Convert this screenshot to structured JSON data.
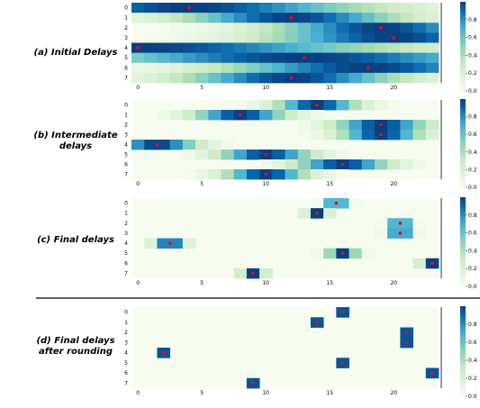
{
  "chart_data": [
    {
      "type": "heatmap",
      "label_lines": [
        "(a) Initial Delays"
      ],
      "y_ticks": [
        "0",
        "1",
        "2",
        "3",
        "4",
        "5",
        "6",
        "7"
      ],
      "x_ticks": [
        "0",
        "5",
        "10",
        "15",
        "20"
      ],
      "colorbar_ticks": [
        "0.0",
        "0.2",
        "0.4",
        "0.6",
        "0.8"
      ],
      "xlim": [
        0,
        24
      ],
      "vmin": 0,
      "vmax": 1,
      "cmap": "GnBu",
      "rows": [
        {
          "center": 4,
          "spread": 10,
          "marker": 4
        },
        {
          "center": 12,
          "spread": 6,
          "marker": 12
        },
        {
          "center": 19,
          "spread": 6,
          "marker": 19
        },
        {
          "center": 20,
          "spread": 7,
          "marker": 20
        },
        {
          "center": 0,
          "spread": 14,
          "marker": 0
        },
        {
          "center": 13,
          "spread": 12,
          "marker": 13
        },
        {
          "center": 18,
          "spread": 8,
          "marker": 18
        },
        {
          "center": 12,
          "spread": 6,
          "marker": 12
        }
      ]
    },
    {
      "type": "heatmap",
      "label_lines": [
        "(b) Intermediate",
        "delays"
      ],
      "y_ticks": [
        "0",
        "1",
        "2",
        "3",
        "4",
        "5",
        "6",
        "7"
      ],
      "x_ticks": [
        "0",
        "5",
        "10",
        "15",
        "20"
      ],
      "colorbar_ticks": [
        "0.0",
        "0.2",
        "0.4",
        "0.6",
        "0.8"
      ],
      "xlim": [
        0,
        24
      ],
      "vmin": 0,
      "vmax": 1,
      "cmap": "GnBu",
      "rows": [
        {
          "center": 14,
          "spread": 2.2,
          "marker": 14
        },
        {
          "center": 8,
          "spread": 2.5,
          "marker": 8
        },
        {
          "center": 19,
          "spread": 2.5,
          "marker": 19
        },
        {
          "center": 19,
          "spread": 2.2,
          "marker": 19
        },
        {
          "center": 1.5,
          "spread": 2.2,
          "marker": 1.5
        },
        {
          "center": 10,
          "spread": 2.5,
          "marker": 10
        },
        {
          "center": 16,
          "spread": 2.5,
          "marker": 16
        },
        {
          "center": 10,
          "spread": 2.2,
          "marker": 10
        }
      ]
    },
    {
      "type": "heatmap",
      "label_lines": [
        "(c) Final delays"
      ],
      "y_ticks": [
        "0",
        "1",
        "2",
        "3",
        "4",
        "5",
        "6",
        "7"
      ],
      "x_ticks": [
        "0",
        "5",
        "10",
        "15",
        "20"
      ],
      "colorbar_ticks": [
        "0.0",
        "0.2",
        "0.4",
        "0.6",
        "0.8"
      ],
      "xlim": [
        0,
        24
      ],
      "vmin": 0,
      "vmax": 1,
      "cmap": "GnBu",
      "rows": [
        {
          "center": 15.5,
          "spread": 0.55,
          "marker": 15.5
        },
        {
          "center": 14,
          "spread": 0.55,
          "marker": 14
        },
        {
          "center": 20.5,
          "spread": 0.55,
          "marker": 20.5
        },
        {
          "center": 20.5,
          "spread": 0.6,
          "marker": 20.5
        },
        {
          "center": 2.5,
          "spread": 0.8,
          "marker": 2.5
        },
        {
          "center": 16,
          "spread": 0.8,
          "marker": 16
        },
        {
          "center": 23,
          "spread": 0.6,
          "marker": 23
        },
        {
          "center": 9,
          "spread": 0.6,
          "marker": 9
        }
      ]
    },
    {
      "type": "heatmap",
      "label_lines": [
        "(d) Final delays",
        "after rounding"
      ],
      "y_ticks": [
        "0",
        "1",
        "2",
        "3",
        "4",
        "5",
        "6",
        "7"
      ],
      "x_ticks": [
        "0",
        "5",
        "10",
        "15",
        "20"
      ],
      "colorbar_ticks": [
        "0.0",
        "0.2",
        "0.4",
        "0.6",
        "0.8"
      ],
      "xlim": [
        0,
        24
      ],
      "vmin": 0,
      "vmax": 1,
      "cmap": "GnBu",
      "rows": [
        {
          "center": 16,
          "spread": 0,
          "marker": 16
        },
        {
          "center": 14,
          "spread": 0,
          "marker": 14
        },
        {
          "center": 21,
          "spread": 0,
          "marker": 21
        },
        {
          "center": 21,
          "spread": 0,
          "marker": 21
        },
        {
          "center": 2,
          "spread": 0,
          "marker": 2
        },
        {
          "center": 16,
          "spread": 0,
          "marker": 16
        },
        {
          "center": 23,
          "spread": 0,
          "marker": 23
        },
        {
          "center": 9,
          "spread": 0,
          "marker": 9
        }
      ]
    }
  ]
}
